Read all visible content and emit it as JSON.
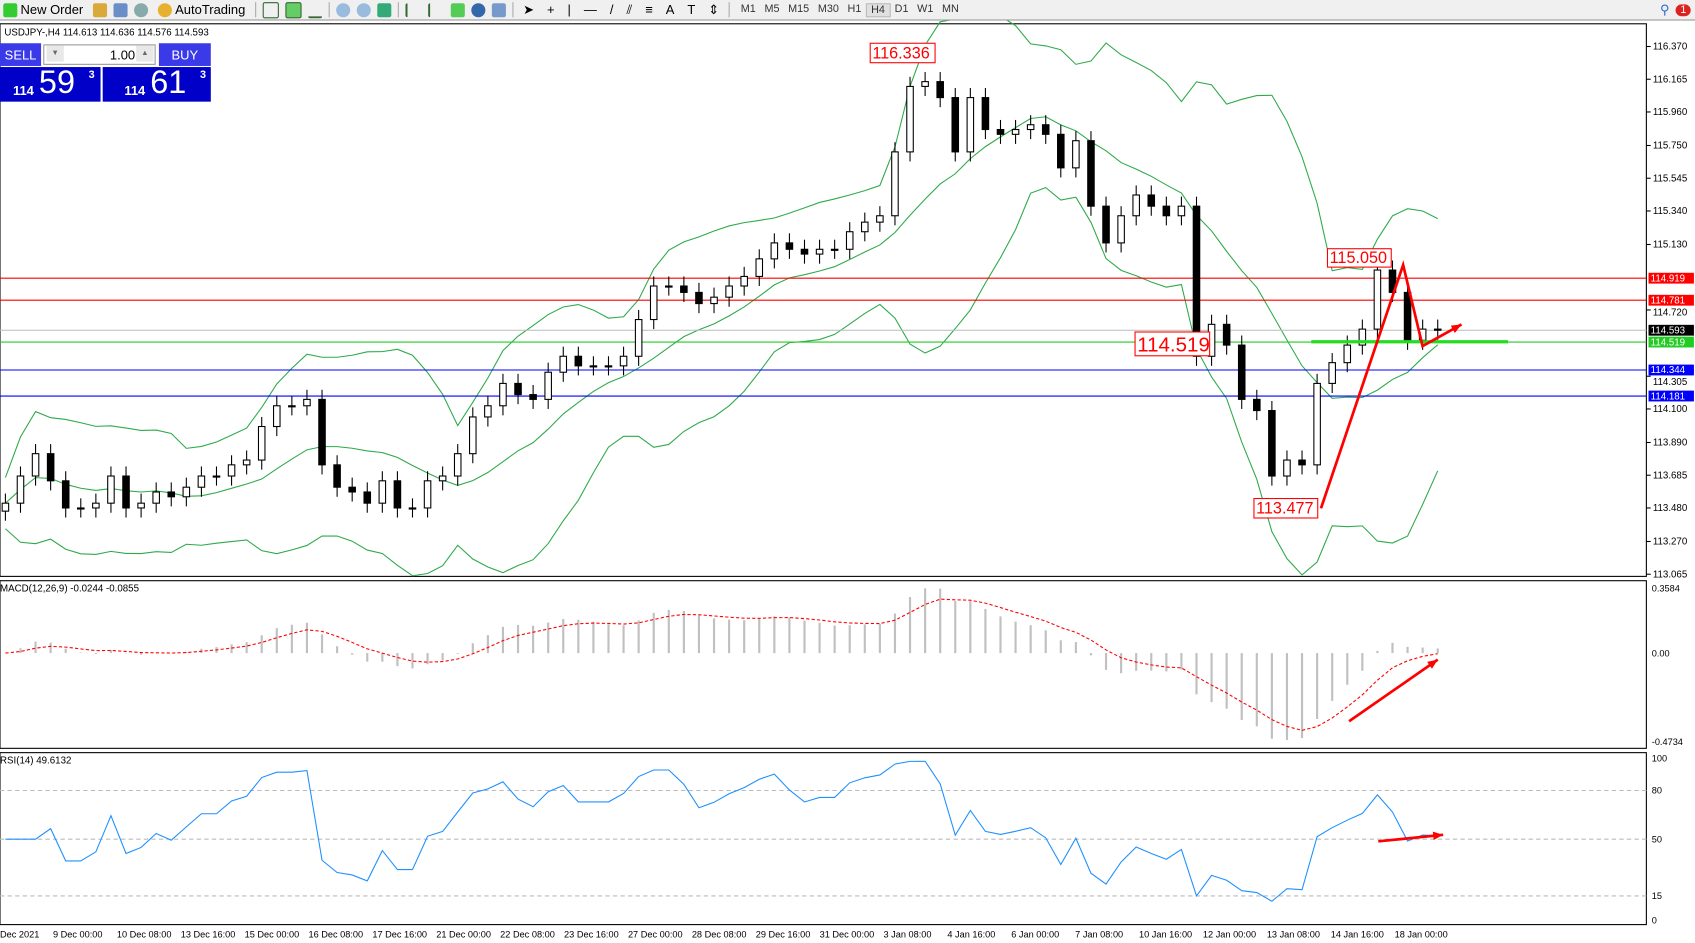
{
  "toolbar": {
    "new_order": "New Order",
    "autotrading": "AutoTrading",
    "timeframes": [
      "M1",
      "M5",
      "M15",
      "M30",
      "H1",
      "H4",
      "D1",
      "W1",
      "MN"
    ],
    "active_timeframe": "H4",
    "notification_count": "1"
  },
  "symbol_info": "USDJPY-,H4  114.613 114.636 114.576 114.593",
  "one_click": {
    "sell": "SELL",
    "buy": "BUY",
    "lot": "1.00",
    "sell_big": "114",
    "sell_pips": "59",
    "sell_frac": "3",
    "buy_big": "114",
    "buy_pips": "61",
    "buy_frac": "3"
  },
  "colors": {
    "bull": "#ffffff",
    "bear": "#000000",
    "bands": "#2eaa4a",
    "rsi": "#1e90ff",
    "signal": "#ff0000",
    "histogram": "#c0c0c0",
    "arrow": "#ff0000"
  },
  "chart_data": {
    "type": "candlestick",
    "price_axis": {
      "ticks": [
        "116.370",
        "116.165",
        "115.960",
        "115.750",
        "115.545",
        "115.340",
        "115.130",
        "114.720",
        "114.305",
        "114.100",
        "113.890",
        "113.685",
        "113.480",
        "113.270",
        "113.065"
      ],
      "range": [
        113.065,
        116.37
      ]
    },
    "time_axis": [
      "Dec 2021",
      "9 Dec 00:00",
      "10 Dec 08:00",
      "13 Dec 16:00",
      "15 Dec 00:00",
      "16 Dec 08:00",
      "17 Dec 16:00",
      "21 Dec 00:00",
      "22 Dec 08:00",
      "23 Dec 16:00",
      "27 Dec 00:00",
      "28 Dec 08:00",
      "29 Dec 16:00",
      "31 Dec 00:00",
      "3 Jan 08:00",
      "4 Jan 16:00",
      "6 Jan 00:00",
      "7 Jan 08:00",
      "10 Jan 16:00",
      "12 Jan 00:00",
      "13 Jan 08:00",
      "14 Jan 16:00",
      "18 Jan 00:00"
    ],
    "closes": [
      113.51,
      113.68,
      113.82,
      113.65,
      113.48,
      113.48,
      113.51,
      113.68,
      113.48,
      113.51,
      113.58,
      113.55,
      113.61,
      113.68,
      113.68,
      113.75,
      113.78,
      113.99,
      114.12,
      114.12,
      114.16,
      113.75,
      113.61,
      113.58,
      113.51,
      113.65,
      113.48,
      113.48,
      113.65,
      113.68,
      113.82,
      114.05,
      114.12,
      114.26,
      114.19,
      114.16,
      114.33,
      114.43,
      114.37,
      114.37,
      114.37,
      114.43,
      114.66,
      114.87,
      114.87,
      114.83,
      114.76,
      114.8,
      114.87,
      114.93,
      115.04,
      115.14,
      115.1,
      115.07,
      115.1,
      115.1,
      115.21,
      115.27,
      115.31,
      115.71,
      116.12,
      116.15,
      116.05,
      115.71,
      116.05,
      115.85,
      115.82,
      115.85,
      115.88,
      115.82,
      115.61,
      115.78,
      115.37,
      115.14,
      115.31,
      115.44,
      115.37,
      115.31,
      115.37,
      114.43,
      114.63,
      114.5,
      114.16,
      114.09,
      113.68,
      113.78,
      113.75,
      114.26,
      114.39,
      114.5,
      114.6,
      114.97,
      114.83,
      114.53,
      114.6,
      114.593
    ],
    "price_lines": [
      {
        "label": "114.919",
        "color": "#ff0000"
      },
      {
        "label": "114.781",
        "color": "#ff0000"
      },
      {
        "label": "114.593",
        "color": "#000000"
      },
      {
        "label": "114.519",
        "color": "#22cc22"
      },
      {
        "label": "114.344",
        "color": "#0000ff"
      },
      {
        "label": "114.181",
        "color": "#0000ff"
      }
    ],
    "annotations": [
      "116.336",
      "115.050",
      "114.519",
      "113.477"
    ],
    "macd": {
      "label": "MACD(12,26,9) -0.0244 -0.0855",
      "ticks": [
        "0.3584",
        "0.00",
        "-0.4734"
      ],
      "range": [
        -0.4734,
        0.3584
      ]
    },
    "rsi": {
      "label": "RSI(14) 49.6132",
      "ticks": [
        "100",
        "80",
        "50",
        "15",
        "0"
      ],
      "levels": [
        80,
        50,
        15
      ]
    }
  }
}
